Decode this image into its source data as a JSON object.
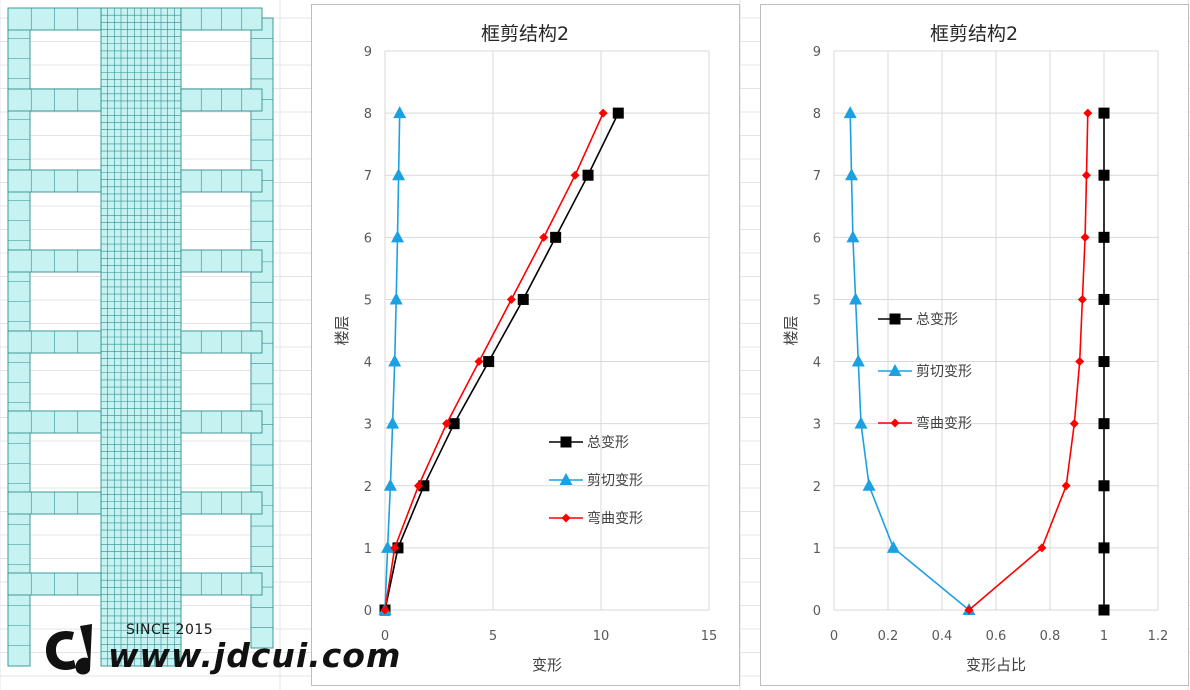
{
  "watermark": {
    "since": "SINCE 2015",
    "url": "www.jdcui.com"
  },
  "chart_data": [
    {
      "type": "scatter",
      "title": "框剪结构2",
      "xlabel": "变形",
      "ylabel": "楼层",
      "xlim": [
        0,
        15
      ],
      "ylim": [
        0,
        9
      ],
      "xticks": [
        0,
        5,
        10,
        15
      ],
      "yticks": [
        0,
        1,
        2,
        3,
        4,
        5,
        6,
        7,
        8,
        9
      ],
      "grid": true,
      "legend_position": "right-middle",
      "series": [
        {
          "name": "总变形",
          "color": "#000000",
          "marker": "square",
          "x": [
            0,
            0.6,
            1.8,
            3.2,
            4.8,
            6.4,
            7.9,
            9.4,
            10.8
          ],
          "y": [
            0,
            1,
            2,
            3,
            4,
            5,
            6,
            7,
            8
          ]
        },
        {
          "name": "剪切变形",
          "color": "#1ba1e2",
          "marker": "triangle",
          "x": [
            0,
            0.12,
            0.25,
            0.35,
            0.45,
            0.52,
            0.58,
            0.63,
            0.68
          ],
          "y": [
            0,
            1,
            2,
            3,
            4,
            5,
            6,
            7,
            8
          ]
        },
        {
          "name": "弯曲变形",
          "color": "#ff0000",
          "marker": "diamond",
          "x": [
            0,
            0.45,
            1.55,
            2.85,
            4.35,
            5.85,
            7.35,
            8.8,
            10.1
          ],
          "y": [
            0,
            1,
            2,
            3,
            4,
            5,
            6,
            7,
            8
          ]
        }
      ]
    },
    {
      "type": "scatter",
      "title": "框剪结构2",
      "xlabel": "变形占比",
      "ylabel": "楼层",
      "xlim": [
        0,
        1.2
      ],
      "ylim": [
        0,
        9
      ],
      "xticks": [
        0,
        0.2,
        0.4,
        0.6,
        0.8,
        1,
        1.2
      ],
      "yticks": [
        0,
        1,
        2,
        3,
        4,
        5,
        6,
        7,
        8,
        9
      ],
      "grid": true,
      "legend_position": "left-middle",
      "series": [
        {
          "name": "总变形",
          "color": "#000000",
          "marker": "square",
          "x": [
            1,
            1,
            1,
            1,
            1,
            1,
            1,
            1,
            1
          ],
          "y": [
            0,
            1,
            2,
            3,
            4,
            5,
            6,
            7,
            8
          ]
        },
        {
          "name": "剪切变形",
          "color": "#1ba1e2",
          "marker": "triangle",
          "x": [
            0.5,
            0.22,
            0.13,
            0.1,
            0.09,
            0.08,
            0.07,
            0.065,
            0.06
          ],
          "y": [
            0,
            1,
            2,
            3,
            4,
            5,
            6,
            7,
            8
          ]
        },
        {
          "name": "弯曲变形",
          "color": "#ff0000",
          "marker": "diamond",
          "x": [
            0.5,
            0.77,
            0.86,
            0.89,
            0.91,
            0.92,
            0.93,
            0.935,
            0.94
          ],
          "y": [
            0,
            1,
            2,
            3,
            4,
            5,
            6,
            7,
            8
          ]
        }
      ]
    }
  ]
}
